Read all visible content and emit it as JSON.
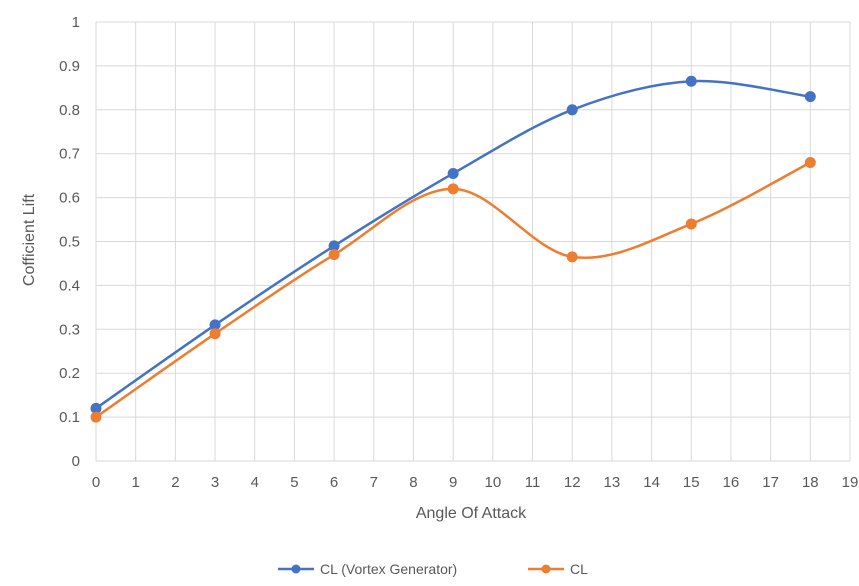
{
  "chart_data": {
    "type": "line",
    "title": "",
    "xlabel": "Angle Of Attack",
    "ylabel": "Cofficient Lift",
    "xlim": [
      0,
      19
    ],
    "ylim": [
      0,
      1
    ],
    "x_ticks": [
      0,
      1,
      2,
      3,
      4,
      5,
      6,
      7,
      8,
      9,
      10,
      11,
      12,
      13,
      14,
      15,
      16,
      17,
      18,
      19
    ],
    "y_ticks": [
      "0",
      "0.1",
      "0.2",
      "0.3",
      "0.4",
      "0.5",
      "0.6",
      "0.7",
      "0.8",
      "0.9",
      "1"
    ],
    "grid": true,
    "smooth": true,
    "legend_position": "bottom",
    "series": [
      {
        "name": "CL (Vortex Generator)",
        "color": "#4472c4",
        "x": [
          0,
          3,
          6,
          9,
          12,
          15,
          18
        ],
        "values": [
          0.12,
          0.31,
          0.49,
          0.655,
          0.8,
          0.865,
          0.83
        ]
      },
      {
        "name": "CL",
        "color": "#ed7d31",
        "x": [
          0,
          3,
          6,
          9,
          12,
          15,
          18
        ],
        "values": [
          0.1,
          0.29,
          0.47,
          0.62,
          0.465,
          0.54,
          0.68
        ]
      }
    ]
  }
}
